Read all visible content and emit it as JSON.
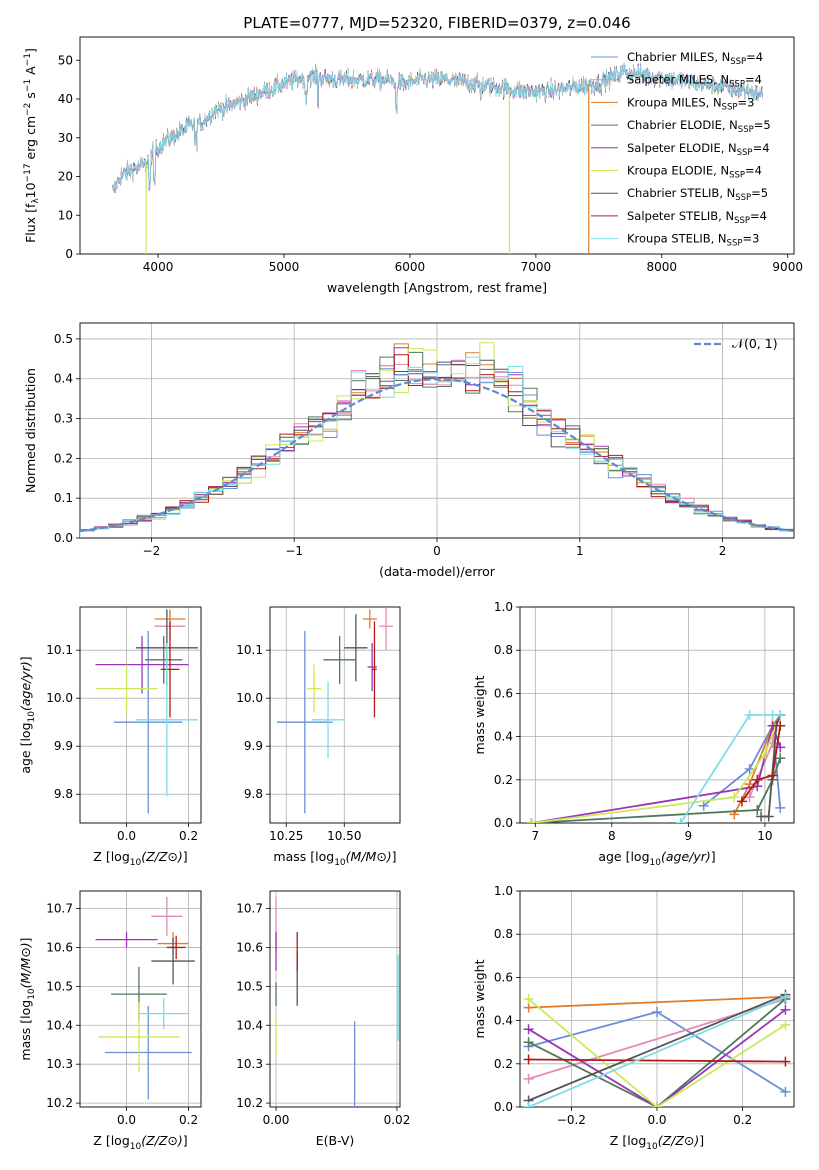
{
  "title": "PLATE=0777, MJD=52320, FIBERID=0379, z=0.046",
  "colors": {
    "chabrier_miles": "#6a8fd8",
    "salpeter_miles": "#e48ab8",
    "kroupa_miles": "#e07c2a",
    "chabrier_elodie": "#4f7a5a",
    "salpeter_elodie": "#9c35b5",
    "kroupa_elodie": "#cde85a",
    "chabrier_stelib": "#555555",
    "salpeter_stelib": "#b01b1b",
    "kroupa_stelib": "#7fdce6",
    "normal_curve": "#5b8bd6"
  },
  "legend_spectrum": [
    {
      "key": "chabrier_miles",
      "label": "Chabrier MILES, N",
      "sub": "SSP",
      "value": "=4"
    },
    {
      "key": "salpeter_miles",
      "label": "Salpeter MILES, N",
      "sub": "SSP",
      "value": "=4"
    },
    {
      "key": "kroupa_miles",
      "label": "Kroupa MILES, N",
      "sub": "SSP",
      "value": "=3"
    },
    {
      "key": "chabrier_elodie",
      "label": "Chabrier ELODIE, N",
      "sub": "SSP",
      "value": "=5"
    },
    {
      "key": "salpeter_elodie",
      "label": "Salpeter ELODIE, N",
      "sub": "SSP",
      "value": "=4"
    },
    {
      "key": "kroupa_elodie",
      "label": "Kroupa ELODIE, N",
      "sub": "SSP",
      "value": "=4"
    },
    {
      "key": "chabrier_stelib",
      "label": "Chabrier STELIB, N",
      "sub": "SSP",
      "value": "=5"
    },
    {
      "key": "salpeter_stelib",
      "label": "Salpeter STELIB, N",
      "sub": "SSP",
      "value": "=4"
    },
    {
      "key": "kroupa_stelib",
      "label": "Kroupa STELIB, N",
      "sub": "SSP",
      "value": "=3"
    }
  ],
  "legend_hist": "𝒩(0, 1)",
  "chart_data": [
    {
      "id": "spectrum",
      "type": "line",
      "xlabel": "wavelength [Angstrom, rest frame]",
      "ylabel_parts": [
        "Flux [f",
        "λ",
        "10",
        "−17",
        " erg cm",
        "−2",
        " s",
        "−1",
        " A",
        "−1",
        "]"
      ],
      "xlim": [
        3380,
        9050
      ],
      "ylim": [
        0,
        56
      ],
      "xticks": [
        4000,
        5000,
        6000,
        7000,
        8000,
        9000
      ],
      "yticks": [
        0,
        10,
        20,
        30,
        40,
        50
      ],
      "continuum": [
        [
          3640,
          16
        ],
        [
          3700,
          20
        ],
        [
          3800,
          22
        ],
        [
          3900,
          23
        ],
        [
          3950,
          26
        ],
        [
          4050,
          29
        ],
        [
          4150,
          31
        ],
        [
          4250,
          33
        ],
        [
          4350,
          34
        ],
        [
          4450,
          37
        ],
        [
          4550,
          38
        ],
        [
          4700,
          40
        ],
        [
          4850,
          42
        ],
        [
          5000,
          44
        ],
        [
          5200,
          46
        ],
        [
          5400,
          45
        ],
        [
          5600,
          45
        ],
        [
          5800,
          45
        ],
        [
          5950,
          44
        ],
        [
          6100,
          45
        ],
        [
          6300,
          45
        ],
        [
          6500,
          44
        ],
        [
          6700,
          43
        ],
        [
          6900,
          42
        ],
        [
          7100,
          42
        ],
        [
          7300,
          43
        ],
        [
          7500,
          44
        ],
        [
          7700,
          47
        ],
        [
          7900,
          46
        ],
        [
          8100,
          45
        ],
        [
          8300,
          44
        ],
        [
          8500,
          43
        ],
        [
          8700,
          42
        ],
        [
          8800,
          41
        ]
      ],
      "dropouts": [
        {
          "key": "kroupa_elodie",
          "x": 3905
        },
        {
          "key": "kroupa_elodie",
          "x": 6790
        },
        {
          "key": "kroupa_miles",
          "x": 7420
        }
      ]
    },
    {
      "id": "residuals",
      "type": "histogram",
      "xlabel": "(data-model)/error",
      "ylabel": "Normed distribution",
      "xlim": [
        -2.5,
        2.5
      ],
      "ylim": [
        0,
        0.54
      ],
      "xticks": [
        -2,
        -1,
        0,
        1,
        2
      ],
      "yticks": [
        0,
        0.1,
        0.2,
        0.3,
        0.4,
        0.5
      ],
      "bin_width": 0.1,
      "normal": {
        "mu": 0,
        "sigma": 1
      }
    },
    {
      "id": "Z_age",
      "type": "scatter",
      "xlabel": "Z [log10(Z/Z⊙)]",
      "ylabel": "age  [log10(age/yr)]",
      "xlim": [
        -0.15,
        0.24
      ],
      "ylim": [
        9.74,
        10.19
      ],
      "xticks": [
        0.0,
        0.2
      ],
      "yticks": [
        9.8,
        9.9,
        10.0,
        10.1
      ],
      "points": [
        {
          "key": "chabrier_miles",
          "x": 0.07,
          "xe": 0.11,
          "y": 9.95,
          "ye": 0.19
        },
        {
          "key": "salpeter_miles",
          "x": 0.14,
          "xe": 0.05,
          "y": 10.15,
          "ye": 0.03
        },
        {
          "key": "kroupa_miles",
          "x": 0.14,
          "xe": 0.05,
          "y": 10.165,
          "ye": 0.02
        },
        {
          "key": "chabrier_elodie",
          "x": 0.12,
          "xe": 0.06,
          "y": 10.08,
          "ye": 0.05
        },
        {
          "key": "salpeter_elodie",
          "x": 0.05,
          "xe": 0.15,
          "y": 10.07,
          "ye": 0.06
        },
        {
          "key": "kroupa_elodie",
          "x": 0.0,
          "xe": 0.1,
          "y": 10.02,
          "ye": 0.05
        },
        {
          "key": "chabrier_stelib",
          "x": 0.13,
          "xe": 0.1,
          "y": 10.105,
          "ye": 0.08
        },
        {
          "key": "salpeter_stelib",
          "x": 0.14,
          "xe": 0.03,
          "y": 10.06,
          "ye": 0.1
        },
        {
          "key": "kroupa_stelib",
          "x": 0.13,
          "xe": 0.1,
          "y": 9.955,
          "ye": 0.16
        }
      ]
    },
    {
      "id": "mass_age",
      "type": "scatter",
      "xlabel": "mass [log10(M/M⊙)]",
      "ylabel": "",
      "xlim": [
        10.18,
        10.74
      ],
      "ylim": [
        9.74,
        10.19
      ],
      "xticks": [
        10.25,
        10.5
      ],
      "yticks": [
        9.8,
        9.9,
        10.0,
        10.1
      ],
      "points": [
        {
          "key": "chabrier_miles",
          "x": 10.33,
          "xe": 0.12,
          "y": 9.95,
          "ye": 0.19
        },
        {
          "key": "salpeter_miles",
          "x": 10.68,
          "xe": 0.03,
          "y": 10.15,
          "ye": 0.05
        },
        {
          "key": "kroupa_miles",
          "x": 10.61,
          "xe": 0.03,
          "y": 10.165,
          "ye": 0.02
        },
        {
          "key": "chabrier_elodie",
          "x": 10.48,
          "xe": 0.07,
          "y": 10.08,
          "ye": 0.05
        },
        {
          "key": "salpeter_elodie",
          "x": 10.62,
          "xe": 0.02,
          "y": 10.065,
          "ye": 0.05
        },
        {
          "key": "kroupa_elodie",
          "x": 10.37,
          "xe": 0.03,
          "y": 10.02,
          "ye": 0.05
        },
        {
          "key": "chabrier_stelib",
          "x": 10.55,
          "xe": 0.05,
          "y": 10.105,
          "ye": 0.07
        },
        {
          "key": "salpeter_stelib",
          "x": 10.63,
          "xe": 0.01,
          "y": 10.06,
          "ye": 0.1
        },
        {
          "key": "kroupa_stelib",
          "x": 10.43,
          "xe": 0.07,
          "y": 9.955,
          "ye": 0.08
        }
      ]
    },
    {
      "id": "age_weight",
      "type": "line",
      "xlabel": "age  [log10(age/yr)]",
      "ylabel": "mass weight",
      "xlim": [
        6.8,
        10.38
      ],
      "ylim": [
        0,
        1.0
      ],
      "xticks": [
        7,
        8,
        9,
        10
      ],
      "yticks": [
        0,
        0.2,
        0.4,
        0.6,
        0.8,
        1.0
      ],
      "series": [
        {
          "key": "chabrier_miles",
          "x": [
            9.2,
            9.8,
            10.1,
            10.2
          ],
          "y": [
            0.08,
            0.25,
            0.45,
            0.07
          ]
        },
        {
          "key": "salpeter_miles",
          "x": [
            9.8,
            10.1,
            10.15,
            10.2
          ],
          "y": [
            0.12,
            0.37,
            0.45,
            0.5
          ]
        },
        {
          "key": "kroupa_miles",
          "x": [
            9.6,
            9.8,
            10.1,
            10.2
          ],
          "y": [
            0.04,
            0.18,
            0.45,
            0.5
          ]
        },
        {
          "key": "chabrier_elodie",
          "x": [
            6.95,
            9.9,
            10.1,
            10.2
          ],
          "y": [
            0.0,
            0.06,
            0.2,
            0.3
          ]
        },
        {
          "key": "salpeter_elodie",
          "x": [
            6.95,
            9.9,
            10.1,
            10.2
          ],
          "y": [
            0.0,
            0.17,
            0.45,
            0.35
          ]
        },
        {
          "key": "kroupa_elodie",
          "x": [
            6.95,
            9.6,
            10.0,
            10.2
          ],
          "y": [
            0.0,
            0.12,
            0.32,
            0.5
          ]
        },
        {
          "key": "chabrier_stelib",
          "x": [
            9.95,
            10.05,
            10.15,
            10.2
          ],
          "y": [
            0.03,
            0.03,
            0.45,
            0.5
          ]
        },
        {
          "key": "salpeter_stelib",
          "x": [
            9.7,
            9.9,
            10.1,
            10.2
          ],
          "y": [
            0.1,
            0.2,
            0.22,
            0.45
          ]
        },
        {
          "key": "kroupa_stelib",
          "x": [
            8.9,
            9.8,
            10.1,
            10.2
          ],
          "y": [
            0.0,
            0.5,
            0.5,
            0.5
          ]
        }
      ]
    },
    {
      "id": "Z_mass",
      "type": "scatter",
      "xlabel": "Z [log10(Z/Z⊙)]",
      "ylabel": "mass [log10(M/M⊙)]",
      "xlim": [
        -0.15,
        0.24
      ],
      "ylim": [
        10.19,
        10.745
      ],
      "xticks": [
        0.0,
        0.2
      ],
      "yticks": [
        10.2,
        10.3,
        10.4,
        10.5,
        10.6,
        10.7
      ],
      "points": [
        {
          "key": "chabrier_miles",
          "x": 0.07,
          "xe": 0.14,
          "y": 10.33,
          "ye": 0.12
        },
        {
          "key": "salpeter_miles",
          "x": 0.13,
          "xe": 0.05,
          "y": 10.68,
          "ye": 0.05
        },
        {
          "key": "kroupa_miles",
          "x": 0.15,
          "xe": 0.05,
          "y": 10.61,
          "ye": 0.03
        },
        {
          "key": "chabrier_elodie",
          "x": 0.04,
          "xe": 0.09,
          "y": 10.48,
          "ye": 0.07
        },
        {
          "key": "salpeter_elodie",
          "x": 0.0,
          "xe": 0.1,
          "y": 10.62,
          "ye": 0.02
        },
        {
          "key": "kroupa_elodie",
          "x": 0.04,
          "xe": 0.13,
          "y": 10.37,
          "ye": 0.09
        },
        {
          "key": "chabrier_stelib",
          "x": 0.15,
          "xe": 0.07,
          "y": 10.565,
          "ye": 0.06
        },
        {
          "key": "salpeter_stelib",
          "x": 0.16,
          "xe": 0.03,
          "y": 10.6,
          "ye": 0.03
        },
        {
          "key": "kroupa_stelib",
          "x": 0.12,
          "xe": 0.08,
          "y": 10.43,
          "ye": 0.04
        }
      ]
    },
    {
      "id": "EBV_mass",
      "type": "scatter",
      "xlabel": "E(B-V)",
      "ylabel": "",
      "xlim": [
        -0.001,
        0.0205
      ],
      "ylim": [
        10.19,
        10.745
      ],
      "xticks": [
        0.0,
        0.02
      ],
      "yticks": [
        10.2,
        10.3,
        10.4,
        10.5,
        10.6,
        10.7
      ],
      "points": [
        {
          "key": "chabrier_miles",
          "x": 0.013,
          "xe": 0,
          "y": 10.3,
          "ye": 0.11
        },
        {
          "key": "salpeter_miles",
          "x": 0.0,
          "xe": 0,
          "y": 10.68,
          "ye": 0.05
        },
        {
          "key": "kroupa_miles",
          "x": 0.0,
          "xe": 0,
          "y": 10.61,
          "ye": 0.02
        },
        {
          "key": "chabrier_elodie",
          "x": 0.0,
          "xe": 0,
          "y": 10.48,
          "ye": 0.03
        },
        {
          "key": "salpeter_elodie",
          "x": 0.0,
          "xe": 0,
          "y": 10.59,
          "ye": 0.05
        },
        {
          "key": "kroupa_elodie",
          "x": 0.0,
          "xe": 0,
          "y": 10.37,
          "ye": 0.05
        },
        {
          "key": "chabrier_stelib",
          "x": 0.0035,
          "xe": 0,
          "y": 10.52,
          "ye": 0.07
        },
        {
          "key": "salpeter_stelib",
          "x": 0.0035,
          "xe": 0,
          "y": 10.59,
          "ye": 0.05
        },
        {
          "key": "kroupa_stelib",
          "x": 0.0202,
          "xe": 0,
          "y": 10.47,
          "ye": 0.11
        }
      ]
    },
    {
      "id": "Z_weight",
      "type": "line",
      "xlabel": "Z [log10(Z/Z⊙)]",
      "ylabel": "mass weight",
      "xlim": [
        -0.32,
        0.32
      ],
      "ylim": [
        0,
        1.0
      ],
      "xticks": [
        -0.2,
        0.0,
        0.2
      ],
      "yticks": [
        0,
        0.2,
        0.4,
        0.6,
        0.8,
        1.0
      ],
      "series": [
        {
          "key": "chabrier_miles",
          "x": [
            -0.3,
            0.0,
            0.3
          ],
          "y": [
            0.28,
            0.44,
            0.07
          ]
        },
        {
          "key": "salpeter_miles",
          "x": [
            -0.3,
            0.3
          ],
          "y": [
            0.13,
            0.5
          ]
        },
        {
          "key": "kroupa_miles",
          "x": [
            -0.3,
            0.3
          ],
          "y": [
            0.46,
            0.51
          ]
        },
        {
          "key": "chabrier_elodie",
          "x": [
            -0.3,
            0.0,
            0.3
          ],
          "y": [
            0.3,
            0.0,
            0.5
          ]
        },
        {
          "key": "salpeter_elodie",
          "x": [
            -0.3,
            0.0,
            0.3
          ],
          "y": [
            0.36,
            0.0,
            0.45
          ]
        },
        {
          "key": "kroupa_elodie",
          "x": [
            -0.3,
            0.0,
            0.3
          ],
          "y": [
            0.5,
            0.0,
            0.38
          ]
        },
        {
          "key": "chabrier_stelib",
          "x": [
            -0.3,
            0.3
          ],
          "y": [
            0.03,
            0.52
          ]
        },
        {
          "key": "salpeter_stelib",
          "x": [
            -0.3,
            0.3
          ],
          "y": [
            0.22,
            0.21
          ]
        },
        {
          "key": "kroupa_stelib",
          "x": [
            -0.3,
            0.3
          ],
          "y": [
            0.0,
            0.51
          ]
        }
      ]
    }
  ]
}
